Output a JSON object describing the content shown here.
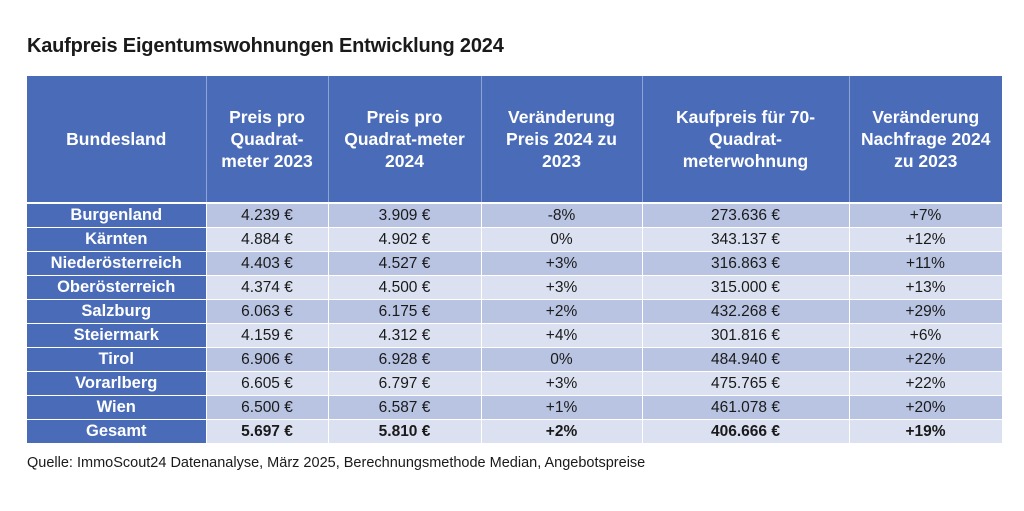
{
  "title": "Kaufpreis Eigentumswohnungen Entwicklung 2024",
  "table": {
    "headers": [
      "Bundesland",
      "Preis pro Quadrat-meter 2023",
      "Preis pro Quadrat-meter 2024",
      "Veränderung Preis 2024 zu 2023",
      "Kaufpreis für 70-Quadrat-meterwohnung",
      "Veränderung Nachfrage 2024 zu 2023"
    ],
    "rows": [
      [
        "Burgenland",
        "4.239 €",
        "3.909 €",
        "-8%",
        "273.636 €",
        "+7%"
      ],
      [
        "Kärnten",
        "4.884 €",
        "4.902 €",
        "0%",
        "343.137 €",
        "+12%"
      ],
      [
        "Niederösterreich",
        "4.403 €",
        "4.527 €",
        "+3%",
        "316.863 €",
        "+11%"
      ],
      [
        "Oberösterreich",
        "4.374 €",
        "4.500 €",
        "+3%",
        "315.000 €",
        "+13%"
      ],
      [
        "Salzburg",
        "6.063 €",
        "6.175 €",
        "+2%",
        "432.268 €",
        "+29%"
      ],
      [
        "Steiermark",
        "4.159 €",
        "4.312 €",
        "+4%",
        "301.816 €",
        "+6%"
      ],
      [
        "Tirol",
        "6.906 €",
        "6.928 €",
        "0%",
        "484.940 €",
        "+22%"
      ],
      [
        "Vorarlberg",
        "6.605 €",
        "6.797 €",
        "+3%",
        "475.765 €",
        "+22%"
      ],
      [
        "Wien",
        "6.500 €",
        "6.587 €",
        "+1%",
        "461.078 €",
        "+20%"
      ],
      [
        "Gesamt",
        "5.697 €",
        "5.810 €",
        "+2%",
        "406.666 €",
        "+19%"
      ]
    ]
  },
  "source": "Quelle: ImmoScout24 Datenanalyse, März 2025, Berechnungsmethode Median, Angebotspreise"
}
